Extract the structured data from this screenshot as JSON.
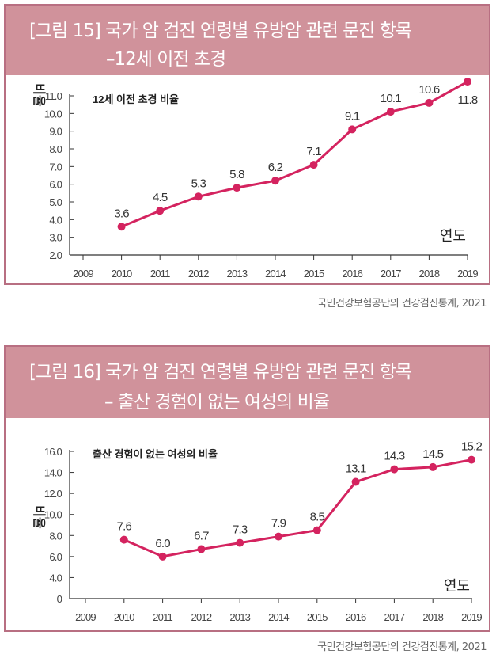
{
  "charts": [
    {
      "title_line1": "[그림 15] 국가 암 검진 연령별 유방암 관련 문진 항목",
      "title_line2": "–12세 이전 초경",
      "source": "국민건강보험공단의 건강검진통계, 2021"
    },
    {
      "title_line1": "[그림 16] 국가 암 검진 연령별 유방암 관련 문진 항목",
      "title_line2": "– 출산 경험이 없는 여성의 비율",
      "source": "국민건강보험공단의 건강검진통계, 2021"
    }
  ],
  "chart_data": [
    {
      "type": "line",
      "title": "12세 이전 초경 비율",
      "xlabel": "연도",
      "ylabel": "비율",
      "categories": [
        "2009",
        "2010",
        "2011",
        "2012",
        "2013",
        "2014",
        "2015",
        "2016",
        "2017",
        "2018",
        "2019"
      ],
      "series": [
        {
          "x": [
            "2010",
            "2011",
            "2012",
            "2013",
            "2014",
            "2015",
            "2016",
            "2017",
            "2018",
            "2019"
          ],
          "values": [
            3.6,
            4.5,
            5.3,
            5.8,
            6.2,
            7.1,
            9.1,
            10.1,
            10.6,
            11.8
          ]
        }
      ],
      "data_labels": [
        "3.6",
        "4.5",
        "5.3",
        "5.8",
        "6.2",
        "7.1",
        "9.1",
        "10.1",
        "10.6",
        "11.8"
      ],
      "y_ticks": [
        "2.0",
        "3.0",
        "4.0",
        "5.0",
        "6.0",
        "7.0",
        "8.0",
        "9.0",
        "10.0",
        "11.0"
      ],
      "ylim": [
        2,
        11
      ],
      "grid": false,
      "line_color": "#d4235f"
    },
    {
      "type": "line",
      "title": "출산 경험이 없는 여성의 비율",
      "xlabel": "연도",
      "ylabel": "비율",
      "categories": [
        "2009",
        "2010",
        "2011",
        "2012",
        "2013",
        "2014",
        "2015",
        "2016",
        "2017",
        "2018",
        "2019"
      ],
      "series": [
        {
          "x": [
            "2010",
            "2011",
            "2012",
            "2013",
            "2014",
            "2015",
            "2016",
            "2017",
            "2018",
            "2019"
          ],
          "values": [
            7.6,
            6.0,
            6.7,
            7.3,
            7.9,
            8.5,
            13.1,
            14.3,
            14.5,
            15.2
          ]
        }
      ],
      "data_labels": [
        "7.6",
        "6.0",
        "6.7",
        "7.3",
        "7.9",
        "8.5",
        "13.1",
        "14.3",
        "14.5",
        "15.2"
      ],
      "y_ticks": [
        "0",
        "4.0",
        "6.0",
        "8.0",
        "10.0",
        "12.0",
        "14.0",
        "16.0"
      ],
      "ylim": [
        0,
        16
      ],
      "broken_axis": true,
      "grid": false,
      "line_color": "#d4235f"
    }
  ]
}
